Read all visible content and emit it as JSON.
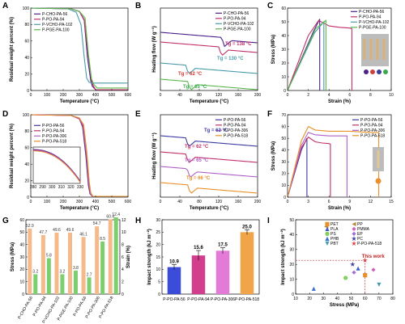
{
  "chart_data": [
    {
      "panel": "A",
      "type": "line",
      "xlabel": "Temperature (°C)",
      "ylabel": "Residual weight percent (%)",
      "xlim": [
        0,
        600
      ],
      "ylim": [
        0,
        100
      ],
      "xticks": [
        "0",
        "100",
        "200",
        "300",
        "400",
        "500",
        "600"
      ],
      "yticks": [
        "0",
        "20",
        "40",
        "60",
        "80",
        "100"
      ],
      "legend_position": "top-left",
      "series": [
        {
          "name": "P-CHO-PA-56",
          "color": "#4b1f8c",
          "x": [
            0,
            250,
            300,
            330,
            350,
            370,
            380,
            400,
            600
          ],
          "y": [
            100,
            99,
            96,
            85,
            40,
            12,
            5,
            1,
            1
          ]
        },
        {
          "name": "P-PO-PA-94",
          "color": "#c0306a",
          "x": [
            0,
            250,
            300,
            330,
            355,
            375,
            385,
            400,
            600
          ],
          "y": [
            100,
            99,
            96,
            86,
            42,
            12,
            6,
            1,
            1
          ]
        },
        {
          "name": "P-VCHO-PA-102",
          "color": "#4a9bab",
          "x": [
            0,
            230,
            280,
            310,
            330,
            345,
            360,
            380,
            600
          ],
          "y": [
            100,
            99,
            95,
            80,
            40,
            15,
            10,
            9,
            9
          ]
        },
        {
          "name": "P-PGE-PA-100",
          "color": "#5ab84a",
          "x": [
            0,
            250,
            300,
            335,
            355,
            375,
            390,
            410,
            600
          ],
          "y": [
            100,
            99,
            96,
            88,
            45,
            14,
            7,
            3,
            3
          ]
        }
      ]
    },
    {
      "panel": "B",
      "type": "line",
      "xlabel": "Temperature (°C)",
      "ylabel": "Heating flow (W g⁻¹)",
      "xlim": [
        0,
        200
      ],
      "xticks": [
        "0",
        "40",
        "80",
        "120",
        "160",
        "200"
      ],
      "legend_position": "top-right",
      "series": [
        {
          "name": "P-CHO-PA-56",
          "color": "#4b1f8c"
        },
        {
          "name": "P-PO-PA-94",
          "color": "#c0306a"
        },
        {
          "name": "P-VCHO-PA-102",
          "color": "#4a9bab"
        },
        {
          "name": "P-PGE-PA-100",
          "color": "#5ab84a"
        }
      ],
      "annotations": [
        {
          "label": "Tg = 138 °C",
          "color": "#c0306a"
        },
        {
          "label": "Tg = 130 °C",
          "color": "#4a9bab"
        },
        {
          "label": "Tg = 62 °C",
          "color": "#d9322b"
        },
        {
          "label": "Tg = 65 °C",
          "color": "#3aa850"
        }
      ]
    },
    {
      "panel": "C",
      "type": "line",
      "xlabel": "Strain (%)",
      "ylabel": "Stress (MPa)",
      "xlim": [
        0,
        10
      ],
      "ylim": [
        0,
        60
      ],
      "xticks": [
        "0",
        "2",
        "4",
        "6",
        "8",
        "10"
      ],
      "yticks": [
        "0",
        "10",
        "20",
        "30",
        "40",
        "50",
        "60"
      ],
      "legend_position": "top-right",
      "series": [
        {
          "name": "P-CHO-PA-56",
          "color": "#4b1f8c",
          "x": [
            0,
            2.5,
            3.1,
            3.1
          ],
          "y": [
            0,
            43,
            52,
            0
          ]
        },
        {
          "name": "P-PO-PA-94",
          "color": "#c0306a",
          "x": [
            0,
            2.0,
            3.0,
            4,
            5,
            6,
            6.2,
            6.2
          ],
          "y": [
            0,
            40,
            51,
            47,
            46,
            45.5,
            45,
            0
          ]
        },
        {
          "name": "P-VCHO-PA-102",
          "color": "#4a9bab",
          "x": [
            0,
            2.6,
            3.5,
            3.5
          ],
          "y": [
            0,
            42,
            50,
            0
          ]
        },
        {
          "name": "P-PGE-PA-100",
          "color": "#5ab84a",
          "x": [
            0,
            2.7,
            3.7,
            3.7
          ],
          "y": [
            0,
            45,
            51,
            0
          ]
        }
      ]
    },
    {
      "panel": "D",
      "type": "line",
      "xlabel": "Temperature (°C)",
      "ylabel": "Residual weight percent (%)",
      "xlim": [
        0,
        600
      ],
      "ylim": [
        0,
        100
      ],
      "xticks": [
        "0",
        "100",
        "200",
        "300",
        "400",
        "500",
        "600"
      ],
      "yticks": [
        "0",
        "20",
        "40",
        "60",
        "80",
        "100"
      ],
      "inset_xticks": [
        "280",
        "290",
        "300",
        "310",
        "320",
        "330"
      ],
      "legend_position": "top-left",
      "series": [
        {
          "name": "P-PO-PA-56",
          "color": "#3a3aa0",
          "x": [
            0,
            250,
            300,
            320,
            340,
            355,
            365,
            380,
            600
          ],
          "y": [
            100,
            99,
            95,
            85,
            50,
            15,
            4,
            1,
            1
          ]
        },
        {
          "name": "P-PO-PA-94",
          "color": "#c0306a",
          "x": [
            0,
            250,
            300,
            322,
            342,
            357,
            367,
            380,
            600
          ],
          "y": [
            100,
            99,
            95,
            86,
            52,
            16,
            4,
            1,
            1
          ]
        },
        {
          "name": "P-PO-PA-306",
          "color": "#b060c8",
          "x": [
            0,
            250,
            300,
            324,
            344,
            359,
            369,
            382,
            600
          ],
          "y": [
            100,
            99,
            96,
            87,
            53,
            17,
            4,
            1,
            1
          ]
        },
        {
          "name": "P-PO-PA-518",
          "color": "#e8902a",
          "x": [
            0,
            250,
            300,
            326,
            346,
            361,
            371,
            384,
            600
          ],
          "y": [
            100,
            99,
            96,
            88,
            55,
            18,
            5,
            1,
            1
          ]
        }
      ]
    },
    {
      "panel": "E",
      "type": "line",
      "xlabel": "Temperature (°C)",
      "ylabel": "Heating flow (W g⁻¹)",
      "xlim": [
        0,
        200
      ],
      "xticks": [
        "0",
        "40",
        "80",
        "120",
        "160",
        "200"
      ],
      "legend_position": "top-right",
      "series": [
        {
          "name": "P-PO-PA-56",
          "color": "#3a3aa0"
        },
        {
          "name": "P-PO-PA-94",
          "color": "#c0306a"
        },
        {
          "name": "P-PO-PA-306",
          "color": "#b060c8"
        },
        {
          "name": "P-PO-PA-518",
          "color": "#e8902a"
        }
      ],
      "annotations": [
        {
          "label": "Tg = 62 °C",
          "color": "#3a3aa0"
        },
        {
          "label": "Tg = 62 °C",
          "color": "#c0306a"
        },
        {
          "label": "Tg = 65 °C",
          "color": "#b060c8"
        },
        {
          "label": "Tg = 66 °C",
          "color": "#e8902a"
        }
      ]
    },
    {
      "panel": "F",
      "type": "line",
      "xlabel": "Strain (%)",
      "ylabel": "Stress (MPa)",
      "xlim": [
        0,
        15
      ],
      "ylim": [
        0,
        70
      ],
      "xticks": [
        "0",
        "3",
        "6",
        "9",
        "12",
        "15"
      ],
      "yticks": [
        "0",
        "10",
        "20",
        "30",
        "40",
        "50",
        "60",
        "70"
      ],
      "legend_position": "top-right",
      "series": [
        {
          "name": "P-PO-PA-56",
          "color": "#3a3aa0",
          "x": [
            0,
            2,
            2.8,
            2.8
          ],
          "y": [
            0,
            40,
            50,
            0
          ]
        },
        {
          "name": "P-PO-PA-94",
          "color": "#c0306a",
          "x": [
            0,
            2,
            3,
            4,
            5,
            6,
            6.2,
            6.2
          ],
          "y": [
            0,
            42,
            51,
            47,
            46,
            45.5,
            45,
            0
          ]
        },
        {
          "name": "P-PO-PA-306",
          "color": "#b060c8",
          "x": [
            0,
            2,
            3,
            4,
            6,
            8,
            8.6,
            8.6
          ],
          "y": [
            0,
            44,
            55,
            53,
            52,
            52,
            52,
            0
          ]
        },
        {
          "name": "P-PO-PA-518",
          "color": "#e8902a",
          "x": [
            0,
            2,
            3,
            4,
            6,
            9,
            12,
            13.2,
            13.2
          ],
          "y": [
            0,
            48,
            60,
            57,
            56,
            56,
            55,
            55,
            0
          ]
        }
      ]
    },
    {
      "panel": "G",
      "type": "bar",
      "ylabel": "Stress (MPa)",
      "y2label": "Strain (%)",
      "ylim": [
        0,
        60
      ],
      "y2lim": [
        0,
        12
      ],
      "yticks": [
        "0",
        "10",
        "20",
        "30",
        "40",
        "50",
        "60"
      ],
      "y2ticks": [
        "0",
        "2",
        "4",
        "6",
        "8",
        "10",
        "12"
      ],
      "categories": [
        "P-CHO-PA-56",
        "P-PO-PA-94",
        "P-VCHO-PA-102",
        "P-PGE-PA-100",
        "P-PO-PA-56",
        "P-PO-PA-306",
        "P-PO-PA-518"
      ],
      "series": [
        {
          "name": "Stress",
          "color": "#f5b98a",
          "values": [
            52.9,
            47.7,
            49.6,
            49.6,
            46.1,
            54.7,
            60.4
          ]
        },
        {
          "name": "Strain",
          "color": "#7ccf6c",
          "values": [
            3.2,
            5.8,
            3.2,
            3.8,
            2.7,
            8.5,
            12.4
          ]
        }
      ]
    },
    {
      "panel": "H",
      "type": "bar",
      "ylabel": "Impact strength (kJ m⁻²)",
      "ylim": [
        0,
        30
      ],
      "yticks": [
        "0",
        "5",
        "10",
        "15",
        "20",
        "25",
        "30"
      ],
      "categories": [
        "P-PO-PA-56",
        "P-PO-PA-94",
        "P-PO-PA-306",
        "P-PO-PA-518"
      ],
      "values": [
        10.9,
        15.6,
        17.5,
        25.0
      ],
      "value_labels": [
        "10.9",
        "15.6",
        "17.5",
        "25.0"
      ],
      "errors": [
        1.0,
        2.0,
        1.2,
        1.0
      ],
      "colors": [
        "#3b4dd8",
        "#d23d8e",
        "#e37ad8",
        "#f2a448"
      ]
    },
    {
      "panel": "I",
      "type": "scatter",
      "xlabel": "Stress (MPa)",
      "ylabel": "Impact strength (kJ m⁻²)",
      "xlim": [
        10,
        80
      ],
      "ylim": [
        0,
        55
      ],
      "xticks": [
        "10",
        "20",
        "30",
        "40",
        "50",
        "60",
        "70",
        "80"
      ],
      "yticks": [
        "0",
        "10",
        "20",
        "30",
        "40",
        "50"
      ],
      "annotation": "This work",
      "reference_lines": {
        "x": 60,
        "y": 25
      },
      "series": [
        {
          "name": "PET",
          "color": "#e8902a",
          "marker": "square",
          "x": [
            60
          ],
          "y": [
            14
          ]
        },
        {
          "name": "PLA",
          "color": "#3a5fc8",
          "marker": "triangle-up",
          "x": [
            55
          ],
          "y": [
            19
          ]
        },
        {
          "name": "PS",
          "color": "#7fcf5a",
          "marker": "circle",
          "x": [
            46
          ],
          "y": [
            12
          ]
        },
        {
          "name": "PHB",
          "color": "#3a70c8",
          "marker": "triangle-up",
          "x": [
            23
          ],
          "y": [
            4
          ]
        },
        {
          "name": "PBT",
          "color": "#4a9bab",
          "marker": "triangle-down",
          "x": [
            70
          ],
          "y": [
            7
          ]
        },
        {
          "name": "PP",
          "color": "#b88a40",
          "marker": "triangle-left",
          "x": [
            32
          ],
          "y": [
            50
          ]
        },
        {
          "name": "PMMA",
          "color": "#d060c0",
          "marker": "diamond",
          "x": [
            66
          ],
          "y": [
            18
          ]
        },
        {
          "name": "EP",
          "color": "#a070d8",
          "marker": "diamond",
          "x": [
            52
          ],
          "y": [
            16
          ]
        },
        {
          "name": "PC",
          "color": "#3a3aa0",
          "marker": "star",
          "x": [
            51
          ],
          "y": [
            22
          ]
        },
        {
          "name": "P-PO-PA-518",
          "color": "#e04040",
          "marker": "star",
          "x": [
            60
          ],
          "y": [
            25
          ]
        }
      ]
    }
  ]
}
